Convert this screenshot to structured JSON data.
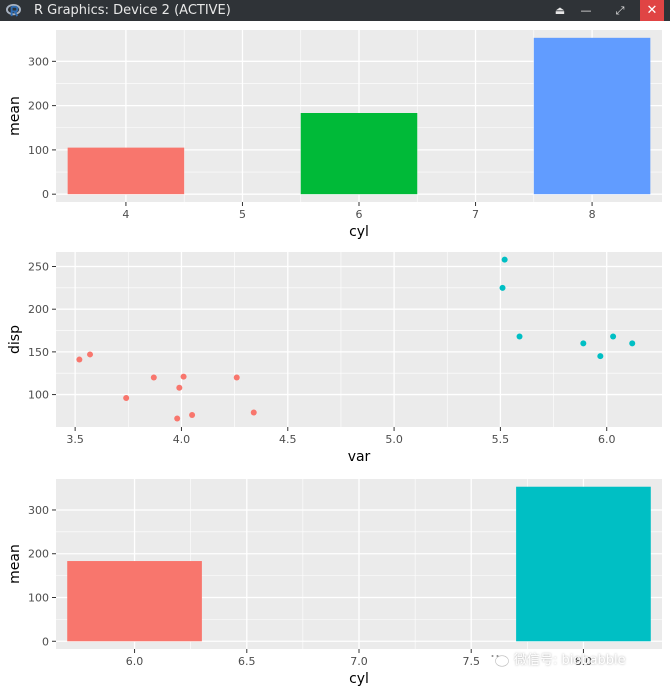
{
  "window": {
    "title": "R Graphics: Device 2 (ACTIVE)",
    "buttons": [
      {
        "name": "eject-button",
        "glyph": "⏏"
      },
      {
        "name": "minimize-button",
        "glyph": "—"
      },
      {
        "name": "restore-button",
        "glyph": "⤢"
      },
      {
        "name": "close-button",
        "glyph": "✕"
      }
    ]
  },
  "colors": {
    "panel_bg": "#ebebeb",
    "grid": "#ffffff",
    "red": "#f8766d",
    "green": "#00ba38",
    "blue": "#619cff",
    "teal": "#00bfc4"
  },
  "watermark": {
    "icon": "wechat-icon",
    "text": "微信号: biobabble"
  },
  "chart_data": [
    {
      "type": "bar",
      "x": [
        4,
        6,
        8
      ],
      "values": [
        105.1364,
        183.3143,
        353.1
      ],
      "colors": [
        "#f8766d",
        "#00ba38",
        "#619cff"
      ],
      "xlabel": "cyl",
      "ylabel": "mean",
      "xlim": [
        3.4,
        8.6
      ],
      "ylim": [
        -17.66,
        370.76
      ],
      "xticks": [
        4,
        5,
        6,
        7,
        8
      ],
      "yticks": [
        0,
        100,
        200,
        300
      ],
      "bar_width": 1.0,
      "grid": true
    },
    {
      "type": "scatter",
      "series": [
        {
          "color": "#f8766d",
          "points": [
            [
              3.52,
              141
            ],
            [
              3.57,
              147
            ],
            [
              3.74,
              96
            ],
            [
              3.87,
              120
            ],
            [
              3.98,
              72
            ],
            [
              3.99,
              108
            ],
            [
              4.01,
              121
            ],
            [
              4.05,
              76
            ],
            [
              4.26,
              120
            ],
            [
              4.34,
              79
            ]
          ]
        },
        {
          "color": "#00bfc4",
          "points": [
            [
              5.51,
              225
            ],
            [
              5.52,
              258
            ],
            [
              5.59,
              168
            ],
            [
              5.89,
              160
            ],
            [
              5.97,
              145
            ],
            [
              6.03,
              168
            ],
            [
              6.12,
              160
            ]
          ]
        }
      ],
      "xlabel": "var",
      "ylabel": "disp",
      "xlim": [
        3.41,
        6.26
      ],
      "ylim": [
        62,
        267
      ],
      "xticks": [
        3.5,
        4.0,
        4.5,
        5.0,
        5.5,
        6.0
      ],
      "xtick_labels": [
        "3.5",
        "4.0",
        "4.5",
        "5.0",
        "5.5",
        "6.0"
      ],
      "yticks": [
        100,
        150,
        200,
        250
      ],
      "grid": true
    },
    {
      "type": "bar",
      "x": [
        6,
        8
      ],
      "values": [
        183.3143,
        353.1
      ],
      "colors": [
        "#f8766d",
        "#00bfc4"
      ],
      "xlabel": "cyl",
      "ylabel": "mean",
      "xlim": [
        5.65,
        8.35
      ],
      "ylim": [
        -17.66,
        370.76
      ],
      "xticks": [
        6.0,
        6.5,
        7.0,
        7.5,
        8.0
      ],
      "xtick_labels": [
        "6.0",
        "6.5",
        "7.0",
        "7.5",
        "8.0"
      ],
      "yticks": [
        0,
        100,
        200,
        300
      ],
      "bar_width": 0.6,
      "grid": true
    }
  ]
}
